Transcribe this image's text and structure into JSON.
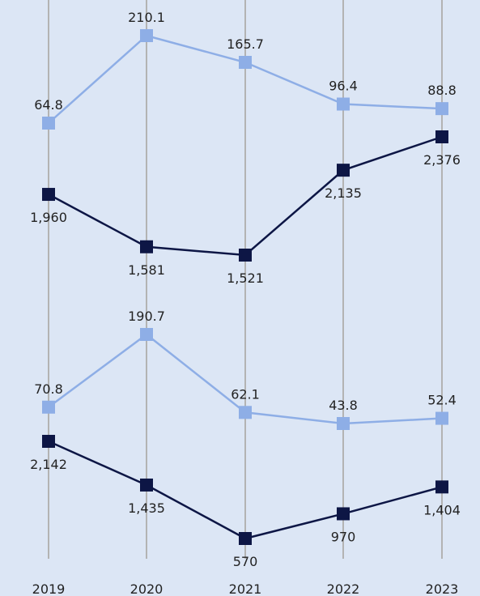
{
  "chart_data": {
    "type": "line",
    "categories": [
      "2019",
      "2020",
      "2021",
      "2022",
      "2023"
    ],
    "grid": "vertical",
    "colors": {
      "light": "#8eaee6",
      "dark": "#0d1645",
      "gridline": "#b3b3b3",
      "background": "#dce6f5"
    },
    "panels": [
      {
        "series": [
          {
            "color": "light",
            "values": [
              64.8,
              210.1,
              165.7,
              96.4,
              88.8
            ],
            "labels": [
              "64.8",
              "210.1",
              "165.7",
              "96.4",
              "88.8"
            ],
            "label_position": "above"
          },
          {
            "color": "dark",
            "values": [
              1960,
              1581,
              1521,
              2135,
              2376
            ],
            "labels": [
              "1,960",
              "1,581",
              "1,521",
              "2,135",
              "2,376"
            ],
            "label_position": "below"
          }
        ]
      },
      {
        "series": [
          {
            "color": "light",
            "values": [
              70.8,
              190.7,
              62.1,
              43.8,
              52.4
            ],
            "labels": [
              "70.8",
              "190.7",
              "62.1",
              "43.8",
              "52.4"
            ],
            "label_position": "above"
          },
          {
            "color": "dark",
            "values": [
              2142,
              1435,
              570,
              970,
              1404
            ],
            "labels": [
              "2,142",
              "1,435",
              "570",
              "970",
              "1,404"
            ],
            "label_position": "below"
          }
        ]
      }
    ]
  }
}
